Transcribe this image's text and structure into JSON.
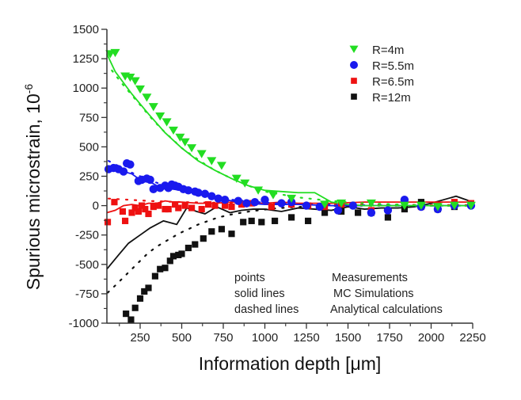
{
  "chart_data": {
    "type": "scatter",
    "title": "",
    "xlabel": "Information depth [μm]",
    "ylabel": "Spurious microstrain, 10",
    "ylabel_superscript": "-6",
    "xlim": [
      50,
      2250
    ],
    "ylim": [
      -1000,
      1500
    ],
    "x_ticks": [
      250,
      500,
      750,
      1000,
      1250,
      1500,
      1750,
      2000,
      2250
    ],
    "y_ticks": [
      -1000,
      -750,
      -500,
      -250,
      0,
      250,
      500,
      750,
      1000,
      1250,
      1500
    ],
    "x_tick_labels": [
      "250",
      "500",
      "750",
      "1000",
      "1250",
      "1500",
      "1750",
      "2000",
      "2250"
    ],
    "y_tick_labels": [
      "-1000",
      "-750",
      "-500",
      "-250",
      "0",
      "250",
      "500",
      "750",
      "1000",
      "1250",
      "1500"
    ],
    "grid": false,
    "legend_position": "top-right",
    "annotations": [
      {
        "left": "points",
        "right": "Measurements"
      },
      {
        "left": "solid lines",
        "right": "MC Simulations"
      },
      {
        "left": "dashed lines",
        "right": "Analytical calculations"
      }
    ],
    "series": [
      {
        "name": "R=4m",
        "color": "#22dd22",
        "marker": "triangle-down",
        "points": {
          "x": [
            70,
            100,
            160,
            190,
            220,
            250,
            290,
            330,
            370,
            410,
            450,
            490,
            520,
            560,
            620,
            680,
            740,
            830,
            880,
            960,
            1050,
            1160,
            1360,
            1460,
            1640,
            1840,
            1940,
            2040,
            2140,
            2240
          ],
          "y": [
            1290,
            1300,
            1100,
            1090,
            1060,
            990,
            920,
            840,
            760,
            710,
            640,
            580,
            540,
            490,
            440,
            380,
            340,
            230,
            190,
            130,
            90,
            60,
            10,
            20,
            20,
            0,
            0,
            -10,
            0,
            0
          ]
        },
        "mc_line": {
          "x": [
            50,
            100,
            200,
            300,
            400,
            500,
            600,
            700,
            800,
            900,
            1000,
            1100,
            1200,
            1300,
            1400,
            1500,
            1600,
            1700,
            1800,
            1900,
            2000,
            2100,
            2200,
            2250
          ],
          "y": [
            1290,
            1140,
            950,
            780,
            620,
            490,
            380,
            300,
            230,
            170,
            130,
            120,
            110,
            110,
            30,
            10,
            0,
            0,
            0,
            0,
            0,
            0,
            0,
            0
          ]
        },
        "analytical_line": {
          "x": [
            80,
            140,
            200,
            260,
            320,
            380,
            440,
            500,
            560,
            620,
            700,
            800,
            900,
            1000,
            1200,
            1400,
            1600,
            1800,
            2000,
            2250
          ],
          "y": [
            1150,
            1040,
            940,
            840,
            740,
            650,
            570,
            490,
            430,
            370,
            300,
            230,
            170,
            120,
            70,
            40,
            20,
            10,
            0,
            0
          ]
        }
      },
      {
        "name": "R=5.5m",
        "color": "#1a1aee",
        "marker": "circle",
        "points": {
          "x": [
            60,
            90,
            120,
            150,
            170,
            190,
            240,
            260,
            290,
            310,
            330,
            370,
            400,
            420,
            440,
            460,
            480,
            510,
            540,
            580,
            600,
            640,
            680,
            720,
            760,
            840,
            890,
            940,
            1000,
            1100,
            1160,
            1250,
            1330,
            1440,
            1530,
            1640,
            1740,
            1840,
            1940,
            2040,
            2140,
            2240
          ],
          "y": [
            310,
            320,
            310,
            290,
            360,
            350,
            210,
            220,
            230,
            220,
            140,
            150,
            170,
            150,
            180,
            170,
            160,
            140,
            130,
            120,
            110,
            100,
            80,
            60,
            50,
            40,
            20,
            30,
            50,
            20,
            30,
            0,
            -10,
            -40,
            0,
            -60,
            -40,
            50,
            -10,
            -30,
            0,
            0
          ]
        },
        "mc_line": {
          "x": [
            50,
            100,
            150,
            200,
            250,
            300,
            350,
            400,
            500,
            600,
            700,
            800,
            900,
            1000,
            1200,
            1400,
            1600,
            1800,
            2000,
            2250
          ],
          "y": [
            320,
            320,
            290,
            270,
            220,
            210,
            170,
            150,
            130,
            100,
            70,
            40,
            20,
            10,
            10,
            0,
            0,
            0,
            0,
            0
          ]
        },
        "analytical_line": {
          "x": [
            60,
            100,
            150,
            200,
            250,
            300,
            400,
            500,
            600,
            700,
            800,
            1000,
            1200,
            1500,
            1800,
            2250
          ],
          "y": [
            380,
            350,
            320,
            280,
            250,
            220,
            170,
            130,
            100,
            70,
            50,
            25,
            10,
            5,
            0,
            0
          ]
        }
      },
      {
        "name": "R=6.5m",
        "color": "#ee1111",
        "marker": "square",
        "points": {
          "x": [
            55,
            95,
            145,
            160,
            200,
            220,
            240,
            260,
            280,
            300,
            330,
            360,
            400,
            420,
            460,
            480,
            520,
            560,
            620,
            660,
            700,
            760,
            800,
            860,
            920,
            1040,
            1160,
            1260,
            1360,
            1460,
            1640,
            1840,
            1940,
            2040,
            2140,
            2240
          ],
          "y": [
            -140,
            30,
            -50,
            -130,
            -60,
            -20,
            -50,
            0,
            -30,
            -70,
            -10,
            0,
            -30,
            -30,
            10,
            -20,
            0,
            -20,
            -30,
            10,
            0,
            0,
            -10,
            10,
            20,
            -10,
            10,
            0,
            -10,
            10,
            -40,
            40,
            -10,
            0,
            30,
            20
          ]
        },
        "mc_line": {
          "x": [
            50,
            100,
            150,
            200,
            250,
            300,
            350,
            400,
            450,
            500,
            600,
            700,
            800,
            900,
            1000,
            1100,
            1200,
            1400,
            1600,
            1800,
            2000,
            2250
          ],
          "y": [
            -60,
            -40,
            0,
            10,
            0,
            20,
            20,
            40,
            30,
            30,
            20,
            20,
            30,
            20,
            20,
            30,
            20,
            20,
            30,
            30,
            30,
            30
          ]
        },
        "analytical_line": {
          "x": [
            60,
            120,
            180,
            240,
            300,
            400,
            500,
            700,
            900,
            1200,
            1600,
            2000,
            2250
          ],
          "y": [
            60,
            55,
            50,
            45,
            40,
            35,
            30,
            25,
            20,
            15,
            10,
            5,
            5
          ]
        }
      },
      {
        "name": "R=12m",
        "color": "#111111",
        "marker": "square",
        "points": {
          "x": [
            165,
            195,
            220,
            250,
            275,
            300,
            340,
            370,
            400,
            430,
            450,
            480,
            500,
            540,
            580,
            630,
            680,
            740,
            800,
            870,
            920,
            980,
            1060,
            1160,
            1260,
            1360,
            1460,
            1560,
            1640,
            1740,
            1840,
            1940,
            2040,
            2140,
            2240
          ],
          "y": [
            -920,
            -970,
            -870,
            -790,
            -730,
            -700,
            -600,
            -540,
            -530,
            -470,
            -430,
            -420,
            -410,
            -360,
            -330,
            -280,
            -220,
            -200,
            -240,
            -140,
            -130,
            -140,
            -130,
            -100,
            -130,
            -60,
            -50,
            -60,
            -60,
            -100,
            -30,
            30,
            -30,
            -10,
            10
          ]
        },
        "mc_line": {
          "x": [
            50,
            120,
            180,
            250,
            310,
            390,
            470,
            530,
            590,
            640,
            710,
            790,
            860,
            930,
            1000,
            1100,
            1200,
            1300,
            1400,
            1500,
            1600,
            1700,
            1800,
            1900,
            2000,
            2100,
            2150,
            2250
          ],
          "y": [
            -540,
            -420,
            -320,
            -250,
            -190,
            -130,
            -160,
            -20,
            -50,
            -70,
            -10,
            -60,
            -40,
            -30,
            -30,
            -50,
            -20,
            -30,
            -40,
            -10,
            -30,
            -20,
            -20,
            -10,
            20,
            60,
            80,
            30
          ]
        },
        "analytical_line": {
          "x": [
            55,
            100,
            150,
            200,
            250,
            300,
            360,
            420,
            480,
            540,
            600,
            660,
            720,
            800,
            880,
            960,
            1050,
            1150,
            1300,
            1500,
            1800,
            2250
          ],
          "y": [
            -740,
            -680,
            -610,
            -540,
            -470,
            -400,
            -340,
            -290,
            -240,
            -200,
            -160,
            -130,
            -100,
            -75,
            -55,
            -40,
            -25,
            -15,
            -5,
            0,
            0,
            0
          ]
        }
      }
    ]
  }
}
